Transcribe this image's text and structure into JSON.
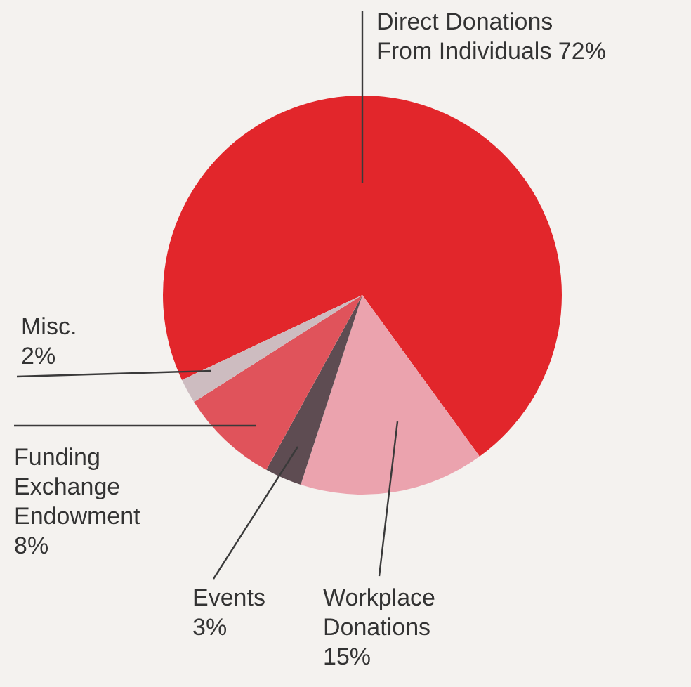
{
  "chart_data": {
    "type": "pie",
    "categories": [
      "Direct Donations From Individuals",
      "Workplace Donations",
      "Events",
      "Funding Exchange Endowment",
      "Misc."
    ],
    "values": [
      72,
      15,
      3,
      8,
      2
    ],
    "value_labels": [
      "72%",
      "15%",
      "3%",
      "8%",
      "2%"
    ],
    "colors": [
      "#e2262b",
      "#eba3ae",
      "#5e4c52",
      "#e0535b",
      "#cdbcc0"
    ]
  }
}
